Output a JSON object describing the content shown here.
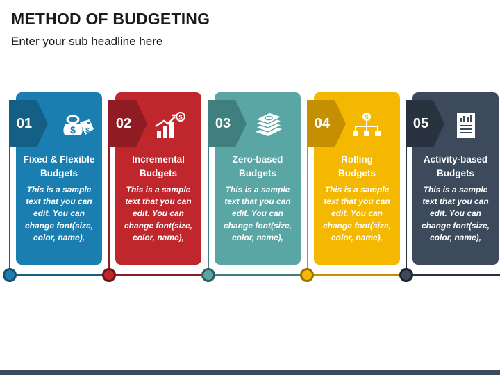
{
  "title": "METHOD OF BUDGETING",
  "subtitle": "Enter your sub headline here",
  "cards": [
    {
      "number": "01",
      "title_line1": "Fixed & Flexible",
      "title_line2": "Budgets",
      "icon": "dollar-tag-icon",
      "color": "#1a7fb0",
      "dark": "#145f86",
      "text": [
        "This is a sample",
        "text that you can",
        "edit. You can",
        "change font(size,",
        "color, name),"
      ]
    },
    {
      "number": "02",
      "title_line1": "Incremental",
      "title_line2": "Budgets",
      "icon": "growth-chart-icon",
      "color": "#c0272d",
      "dark": "#8f1c22",
      "text": [
        "This is a sample",
        "text that you can",
        "edit. You can",
        "change font(size,",
        "color, name),"
      ]
    },
    {
      "number": "03",
      "title_line1": "Zero-based",
      "title_line2": "Budgets",
      "icon": "money-stack-icon",
      "color": "#5aa6a4",
      "dark": "#3f807e",
      "text": [
        "This is a sample",
        "text that you can",
        "edit. You can",
        "change font(size,",
        "color, name),"
      ]
    },
    {
      "number": "04",
      "title_line1": "Rolling",
      "title_line2": "Budgets",
      "icon": "dollar-hierarchy-icon",
      "color": "#f5b800",
      "dark": "#c48f00",
      "text": [
        "This is a sample",
        "text that you can",
        "edit. You can",
        "change font(size,",
        "color, name),"
      ]
    },
    {
      "number": "05",
      "title_line1": "Activity-based",
      "title_line2": "Budgets",
      "icon": "report-document-icon",
      "color": "#3d4a5c",
      "dark": "#293340",
      "text": [
        "This is a sample",
        "text that you can",
        "edit. You can",
        "change font(size,",
        "color, name),"
      ]
    }
  ]
}
